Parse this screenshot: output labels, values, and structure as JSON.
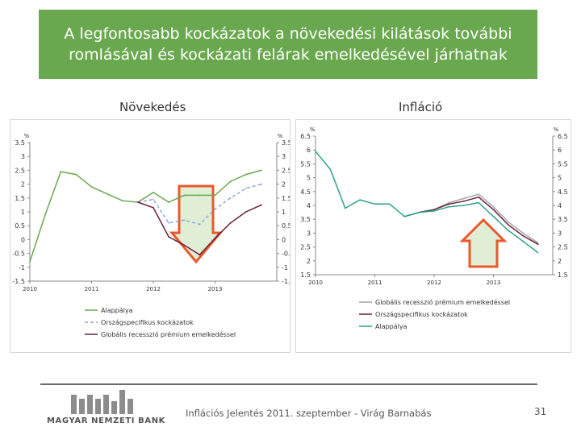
{
  "slide": {
    "title_line1": "A legfontosabb kockázatok a növekedési kilátások további",
    "title_line2": "romlásával és kockázati felárak emelkedésével járhatnak",
    "accent_color": "#6aa84f",
    "footer": "Inflációs Jelentés 2011. szeptember - Virág Barnabás",
    "page_number": "31",
    "logo_text": "MAGYAR NEMZETI BANK"
  },
  "chart_data": [
    {
      "type": "line",
      "title": "Növekedés",
      "unit_left": "%",
      "unit_right": "%",
      "ylim": [
        -1.5,
        3.5
      ],
      "yticks": [
        3.5,
        3,
        2.5,
        2,
        1.5,
        1,
        0.5,
        0,
        -0.5,
        -1,
        -1.5
      ],
      "xlim": [
        2010,
        2014
      ],
      "xticks": [
        2010,
        2011,
        2012,
        2013
      ],
      "grid": false,
      "legend_position": "bottom",
      "series": [
        {
          "name": "Alappálya",
          "color": "#6aa84f",
          "dash": "",
          "x": [
            2010,
            2010.25,
            2010.5,
            2010.75,
            2011,
            2011.25,
            2011.5,
            2011.75,
            2012,
            2012.25,
            2012.5,
            2012.75,
            2013,
            2013.25,
            2013.5,
            2013.75
          ],
          "y": [
            -0.8,
            0.9,
            2.45,
            2.35,
            1.9,
            1.65,
            1.4,
            1.35,
            1.7,
            1.35,
            1.6,
            1.6,
            1.6,
            2.1,
            2.35,
            2.5
          ]
        },
        {
          "name": "Országspecifikus kockázatok",
          "color": "#8ea9db",
          "dash": "4,3",
          "x": [
            2011.75,
            2012,
            2012.25,
            2012.5,
            2012.75,
            2013,
            2013.25,
            2013.5,
            2013.75
          ],
          "y": [
            1.35,
            1.45,
            0.6,
            0.7,
            0.55,
            1.1,
            1.5,
            1.85,
            2.0
          ]
        },
        {
          "name": "Globális recesszió prémium emelkedéssel",
          "color": "#6b1f3c",
          "dash": "",
          "x": [
            2011.75,
            2012,
            2012.25,
            2012.5,
            2012.75,
            2013,
            2013.25,
            2013.5,
            2013.75
          ],
          "y": [
            1.35,
            1.15,
            0.1,
            -0.2,
            -0.55,
            0.05,
            0.6,
            1.0,
            1.25
          ]
        }
      ]
    },
    {
      "type": "line",
      "title": "Infláció",
      "unit_left": "%",
      "unit_right": "%",
      "ylim": [
        1.5,
        6.5
      ],
      "yticks": [
        6.5,
        6,
        5.5,
        5,
        4.5,
        4,
        3.5,
        3,
        2.5,
        2,
        1.5
      ],
      "xlim": [
        2010,
        2014
      ],
      "xticks": [
        2010,
        2011,
        2012,
        2013
      ],
      "grid": false,
      "legend_position": "bottom",
      "series": [
        {
          "name": "Globális recesszió prémium emelkedéssel",
          "color": "#a6a6a6",
          "dash": "",
          "x": [
            2011.5,
            2011.75,
            2012,
            2012.25,
            2012.5,
            2012.75,
            2013,
            2013.25,
            2013.5,
            2013.75
          ],
          "y": [
            3.6,
            3.75,
            3.85,
            4.1,
            4.25,
            4.4,
            3.95,
            3.4,
            3.0,
            2.65
          ]
        },
        {
          "name": "Országspecifikus kockázatok",
          "color": "#6b1f3c",
          "dash": "",
          "x": [
            2011.5,
            2011.75,
            2012,
            2012.25,
            2012.5,
            2012.75,
            2013,
            2013.25,
            2013.5,
            2013.75
          ],
          "y": [
            3.6,
            3.75,
            3.85,
            4.05,
            4.15,
            4.3,
            3.85,
            3.3,
            2.9,
            2.6
          ]
        },
        {
          "name": "Alappálya",
          "color": "#2fa38c",
          "dash": "",
          "x": [
            2010,
            2010.25,
            2010.5,
            2010.75,
            2011,
            2011.25,
            2011.5,
            2011.75,
            2012,
            2012.25,
            2012.5,
            2012.75,
            2013,
            2013.25,
            2013.5,
            2013.75
          ],
          "y": [
            5.95,
            5.3,
            3.9,
            4.2,
            4.05,
            4.05,
            3.6,
            3.75,
            3.8,
            3.95,
            4.0,
            4.1,
            3.6,
            3.1,
            2.7,
            2.3
          ]
        }
      ]
    }
  ]
}
